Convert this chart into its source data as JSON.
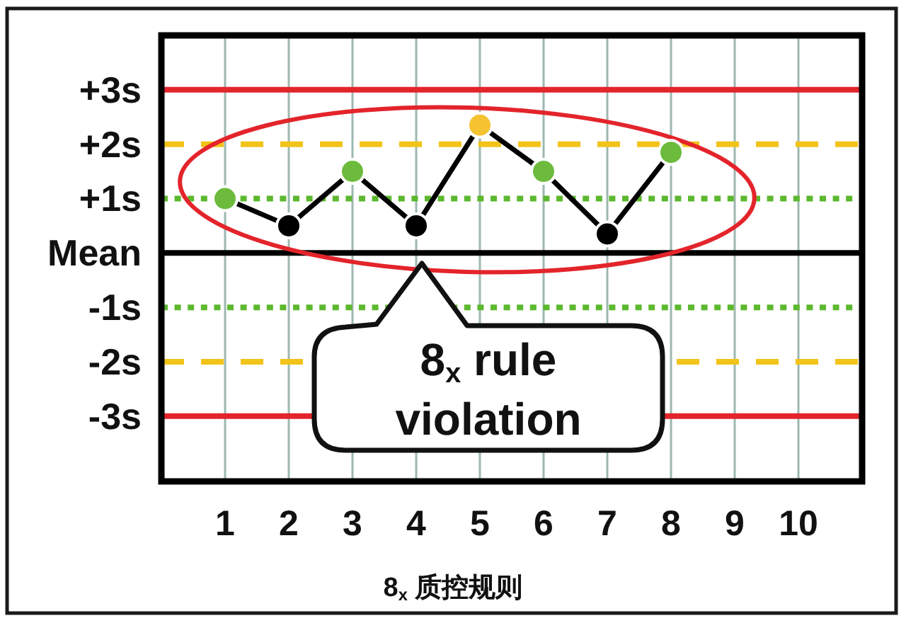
{
  "chart_data": {
    "type": "line",
    "xlabel": "8$_{x}$ 质控规则",
    "x": [
      1,
      2,
      3,
      4,
      5,
      6,
      7,
      8
    ],
    "values": [
      1,
      0.5,
      1.5,
      0.5,
      2.35,
      1.5,
      0.35,
      1.85
    ],
    "color": "#000000",
    "colors": [
      "#6cbb3c",
      "#000000",
      "#6cbb3c",
      "#000000",
      "#f5c231",
      "#6cbb3c",
      "#000000",
      "#6cbb3c"
    ],
    "marker": "circle",
    "line_style": "solid",
    "xlim": [
      0,
      11
    ],
    "xticks": [
      1,
      2,
      3,
      4,
      5,
      6,
      7,
      8,
      9,
      10
    ],
    "ylim": [
      -4.2,
      4
    ],
    "yticks": [
      {
        "value": 3,
        "label": "+3s"
      },
      {
        "value": 2,
        "label": "+2s"
      },
      {
        "value": 1,
        "label": "+1s"
      },
      {
        "value": 0,
        "label": "Mean"
      },
      {
        "value": -1,
        "label": "-1s"
      },
      {
        "value": -2,
        "label": "-2s"
      },
      {
        "value": -3,
        "label": "-3s"
      }
    ],
    "grid": "x",
    "ref_lines": [
      {
        "axis": "y",
        "value": 3,
        "color": "#e3242b",
        "line_style": "solid"
      },
      {
        "axis": "y",
        "value": 2,
        "color": "#f2c318",
        "line_style": "dashed"
      },
      {
        "axis": "y",
        "value": 1,
        "color": "#5cb82e",
        "line_style": "dotted"
      },
      {
        "axis": "y",
        "value": 0,
        "color": "#000000",
        "line_style": "solid"
      },
      {
        "axis": "y",
        "value": -1,
        "color": "#5cb82e",
        "line_style": "dotted"
      },
      {
        "axis": "y",
        "value": -2,
        "color": "#f2c318",
        "line_style": "dashed"
      },
      {
        "axis": "y",
        "value": -3,
        "color": "#e3242b",
        "line_style": "solid"
      }
    ],
    "annotations": [
      "8$_{x}$ rule violation"
    ]
  }
}
